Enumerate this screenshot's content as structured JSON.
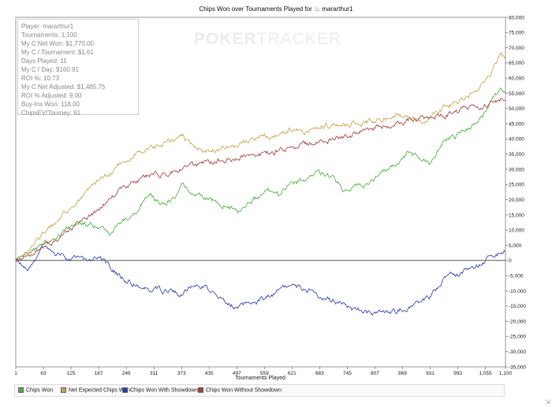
{
  "title": "Chips Won over Tournaments Played for",
  "player_name": "mararthur1",
  "watermark": {
    "left": "POKER",
    "right": "TRACKER"
  },
  "stats": [
    "Player: mararthur1",
    "Tournaments: 1,100",
    "My C Net Won: $1,770.00",
    "My C / Tournament: $1.61",
    "Days Played: 11",
    "My C / Day: $160.91",
    "ROI %: 10.73",
    "My C Net Adjusted: $1,485.75",
    "ROI % Adjusted: 9.00",
    "Buy-Ins Won: 118.00",
    "ChipsEV/Tourney: 61"
  ],
  "icons": {
    "title_logo": "flame-icon",
    "resize": "resize-grip-icon"
  },
  "chart_data": {
    "type": "line",
    "xlabel": "Tournaments Played",
    "ylabel": "",
    "xlim": [
      1,
      1100
    ],
    "ylim": [
      -35000,
      80000
    ],
    "x_ticks": [
      1,
      63,
      125,
      187,
      249,
      311,
      373,
      435,
      497,
      559,
      621,
      683,
      745,
      807,
      869,
      931,
      993,
      1055,
      1100
    ],
    "x_tick_labels": [
      "1",
      "63",
      "125",
      "187",
      "249",
      "311",
      "373",
      "435",
      "497",
      "559",
      "621",
      "683",
      "745",
      "807",
      "869",
      "931",
      "993",
      "1,055",
      "1,100"
    ],
    "y_ticks": [
      -35000,
      -30000,
      -25000,
      -20000,
      -15000,
      -10000,
      -5000,
      0,
      5000,
      10000,
      15000,
      20000,
      25000,
      30000,
      35000,
      40000,
      45000,
      50000,
      55000,
      60000,
      65000,
      70000,
      75000,
      80000
    ],
    "y_tick_labels": [
      "-35,000",
      "-30,000",
      "-25,000",
      "-20,000",
      "-15,000",
      "-10,000",
      "-5,000",
      "0",
      "5,000",
      "10,000",
      "15,000",
      "20,000",
      "25,000",
      "30,000",
      "35,000",
      "40,000",
      "45,000",
      "50,000",
      "55,000",
      "60,000",
      "65,000",
      "70,000",
      "75,000",
      "80,000"
    ],
    "grid": false,
    "legend_position": "bottom",
    "series": [
      {
        "name": "Chips Won",
        "color": "#4caf3e",
        "x": [
          1,
          30,
          60,
          100,
          140,
          180,
          210,
          240,
          270,
          300,
          330,
          360,
          375,
          400,
          430,
          460,
          500,
          530,
          560,
          590,
          620,
          650,
          680,
          710,
          740,
          770,
          800,
          830,
          860,
          880,
          910,
          930,
          960,
          990,
          1020,
          1050,
          1070,
          1090,
          1100
        ],
        "y": [
          0,
          3000,
          5000,
          8000,
          13000,
          11000,
          9000,
          13000,
          16000,
          22000,
          18000,
          21000,
          25000,
          22000,
          20000,
          19000,
          16000,
          19000,
          23000,
          21000,
          27000,
          26000,
          29000,
          27000,
          23000,
          25000,
          26000,
          30000,
          32000,
          35000,
          34000,
          32000,
          39000,
          41000,
          44000,
          48000,
          53000,
          57000,
          55000
        ]
      },
      {
        "name": "Net Expected Chips Won",
        "color": "#c8a24a",
        "x": [
          1,
          30,
          60,
          100,
          140,
          180,
          210,
          240,
          270,
          300,
          330,
          360,
          375,
          400,
          430,
          460,
          500,
          530,
          560,
          590,
          620,
          650,
          680,
          710,
          740,
          770,
          800,
          830,
          860,
          880,
          910,
          930,
          960,
          990,
          1020,
          1050,
          1070,
          1090,
          1100
        ],
        "y": [
          0,
          3000,
          8000,
          13000,
          20000,
          25000,
          28000,
          32000,
          35000,
          36000,
          38000,
          40000,
          41000,
          38000,
          36000,
          37000,
          38000,
          40000,
          41000,
          41000,
          43000,
          42000,
          44000,
          45000,
          44000,
          45000,
          46000,
          47000,
          48000,
          47000,
          46000,
          47000,
          50000,
          52000,
          54000,
          58000,
          63000,
          68000,
          66000
        ]
      },
      {
        "name": "Chips Won With Showdown",
        "color": "#2b3db1",
        "x": [
          1,
          30,
          60,
          90,
          120,
          150,
          170,
          185,
          200,
          230,
          250,
          280,
          310,
          340,
          370,
          400,
          430,
          460,
          490,
          520,
          550,
          580,
          610,
          640,
          670,
          700,
          730,
          760,
          790,
          810,
          840,
          870,
          900,
          930,
          960,
          990,
          1020,
          1050,
          1060,
          1080,
          1100
        ],
        "y": [
          0,
          -2000,
          4000,
          2000,
          1000,
          0,
          0,
          2000,
          0,
          -5000,
          -7000,
          -8000,
          -9000,
          -10000,
          -11000,
          -9000,
          -9000,
          -12000,
          -15000,
          -14000,
          -13000,
          -11000,
          -8000,
          -9000,
          -10000,
          -13000,
          -14000,
          -16000,
          -17000,
          -18000,
          -17000,
          -16000,
          -14000,
          -12000,
          -6000,
          -5000,
          -3000,
          -1000,
          1000,
          2000,
          3000
        ]
      },
      {
        "name": "Chips Won Without Showdown",
        "color": "#a63c3c",
        "x": [
          1,
          30,
          60,
          100,
          140,
          180,
          210,
          240,
          270,
          300,
          330,
          360,
          375,
          400,
          430,
          460,
          500,
          530,
          560,
          590,
          620,
          650,
          680,
          710,
          740,
          770,
          800,
          830,
          860,
          880,
          910,
          930,
          960,
          990,
          1020,
          1050,
          1070,
          1090,
          1100
        ],
        "y": [
          0,
          2000,
          4000,
          8000,
          12000,
          16000,
          20000,
          24000,
          26000,
          28000,
          28000,
          30000,
          30000,
          31000,
          32000,
          33000,
          34000,
          35000,
          35000,
          36000,
          37000,
          38000,
          39000,
          40000,
          41000,
          42000,
          43000,
          44000,
          45000,
          46000,
          47000,
          47000,
          48000,
          49000,
          50000,
          51000,
          52000,
          53000,
          52000
        ]
      }
    ]
  }
}
